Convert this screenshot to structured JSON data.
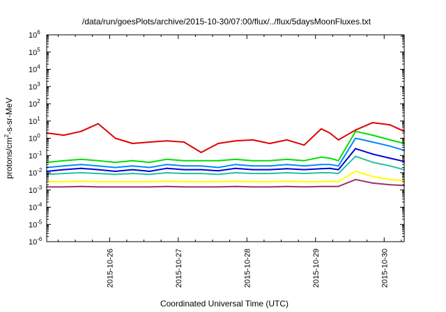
{
  "chart_data": {
    "type": "line",
    "title": "/data/run/goesPlots/archive/2015-10-30/07:00/flux/../flux/5daysMoonFluxes.txt",
    "xlabel": "Coordinated Universal Time (UTC)",
    "ylabel": "protons/cm²-s-sr-MeV",
    "ylabel_parts": {
      "pre": "protons/cm",
      "sup": "2",
      "post": "-s-sr-MeV"
    },
    "yscale": "log",
    "ylim": [
      1e-06,
      1000000.0
    ],
    "ytick_labels": [
      {
        "base": "10",
        "exp": "-6",
        "value": -6
      },
      {
        "base": "10",
        "exp": "-5",
        "value": -5
      },
      {
        "base": "10",
        "exp": "-4",
        "value": -4
      },
      {
        "base": "10",
        "exp": "-3",
        "value": -3
      },
      {
        "base": "10",
        "exp": "-2",
        "value": -2
      },
      {
        "base": "10",
        "exp": "-1",
        "value": -1
      },
      {
        "base": "10",
        "exp": "0",
        "value": 0
      },
      {
        "base": "10",
        "exp": "1",
        "value": 1
      },
      {
        "base": "10",
        "exp": "2",
        "value": 2
      },
      {
        "base": "10",
        "exp": "3",
        "value": 3
      },
      {
        "base": "10",
        "exp": "4",
        "value": 4
      },
      {
        "base": "10",
        "exp": "5",
        "value": 5
      },
      {
        "base": "10",
        "exp": "6",
        "value": 6
      }
    ],
    "xlim": [
      "2015-10-25T02:00",
      "2015-10-30T07:00"
    ],
    "xticks": [
      {
        "label": "2015-10-26",
        "time": "2015-10-26T00:00"
      },
      {
        "label": "2015-10-27",
        "time": "2015-10-27T00:00"
      },
      {
        "label": "2015-10-28",
        "time": "2015-10-28T00:00"
      },
      {
        "label": "2015-10-29",
        "time": "2015-10-29T00:00"
      },
      {
        "label": "2015-10-30",
        "time": "2015-10-30T00:00"
      }
    ],
    "grid": false,
    "x": [
      "2015-10-25T02:00",
      "2015-10-25T08:00",
      "2015-10-25T14:00",
      "2015-10-25T20:00",
      "2015-10-26T02:00",
      "2015-10-26T08:00",
      "2015-10-26T14:00",
      "2015-10-26T20:00",
      "2015-10-27T02:00",
      "2015-10-27T08:00",
      "2015-10-27T14:00",
      "2015-10-27T20:00",
      "2015-10-28T02:00",
      "2015-10-28T08:00",
      "2015-10-28T14:00",
      "2015-10-28T20:00",
      "2015-10-29T02:00",
      "2015-10-29T05:00",
      "2015-10-29T08:00",
      "2015-10-29T14:00",
      "2015-10-29T20:00",
      "2015-10-30T02:00",
      "2015-10-30T07:00"
    ],
    "series": [
      {
        "color": "#e00000",
        "values": [
          2.0,
          1.5,
          2.5,
          7.0,
          1.0,
          0.5,
          0.6,
          0.7,
          0.6,
          0.15,
          0.5,
          0.7,
          0.8,
          0.5,
          0.8,
          0.4,
          3.5,
          2.0,
          0.8,
          3.0,
          8.0,
          6.0,
          2.5
        ]
      },
      {
        "color": "#00e000",
        "values": [
          0.04,
          0.05,
          0.06,
          0.05,
          0.04,
          0.05,
          0.04,
          0.06,
          0.05,
          0.05,
          0.05,
          0.06,
          0.05,
          0.05,
          0.06,
          0.05,
          0.08,
          0.07,
          0.05,
          2.5,
          1.5,
          0.8,
          0.5
        ]
      },
      {
        "color": "#0088ff",
        "values": [
          0.02,
          0.025,
          0.03,
          0.025,
          0.02,
          0.025,
          0.02,
          0.03,
          0.025,
          0.025,
          0.02,
          0.03,
          0.025,
          0.025,
          0.03,
          0.025,
          0.03,
          0.03,
          0.025,
          1.0,
          0.6,
          0.35,
          0.2
        ]
      },
      {
        "color": "#0000dd",
        "values": [
          0.012,
          0.015,
          0.018,
          0.015,
          0.012,
          0.015,
          0.012,
          0.018,
          0.015,
          0.015,
          0.013,
          0.018,
          0.015,
          0.015,
          0.017,
          0.015,
          0.017,
          0.018,
          0.015,
          0.25,
          0.12,
          0.07,
          0.045
        ]
      },
      {
        "color": "#22c0a0",
        "values": [
          0.008,
          0.009,
          0.01,
          0.009,
          0.008,
          0.009,
          0.008,
          0.01,
          0.009,
          0.009,
          0.008,
          0.01,
          0.009,
          0.009,
          0.01,
          0.009,
          0.01,
          0.01,
          0.009,
          0.09,
          0.04,
          0.025,
          0.015
        ]
      },
      {
        "color": "#ffff00",
        "values": [
          0.003,
          0.003,
          0.0032,
          0.003,
          0.003,
          0.003,
          0.003,
          0.0032,
          0.003,
          0.003,
          0.003,
          0.0032,
          0.003,
          0.003,
          0.0032,
          0.003,
          0.003,
          0.0032,
          0.003,
          0.012,
          0.006,
          0.004,
          0.0035
        ]
      },
      {
        "color": "#993366",
        "values": [
          0.0015,
          0.0015,
          0.0016,
          0.0015,
          0.0015,
          0.0015,
          0.0015,
          0.0016,
          0.0015,
          0.0015,
          0.0015,
          0.0016,
          0.0015,
          0.0015,
          0.0016,
          0.0015,
          0.0016,
          0.0016,
          0.0016,
          0.004,
          0.0025,
          0.002,
          0.0018
        ]
      }
    ]
  }
}
